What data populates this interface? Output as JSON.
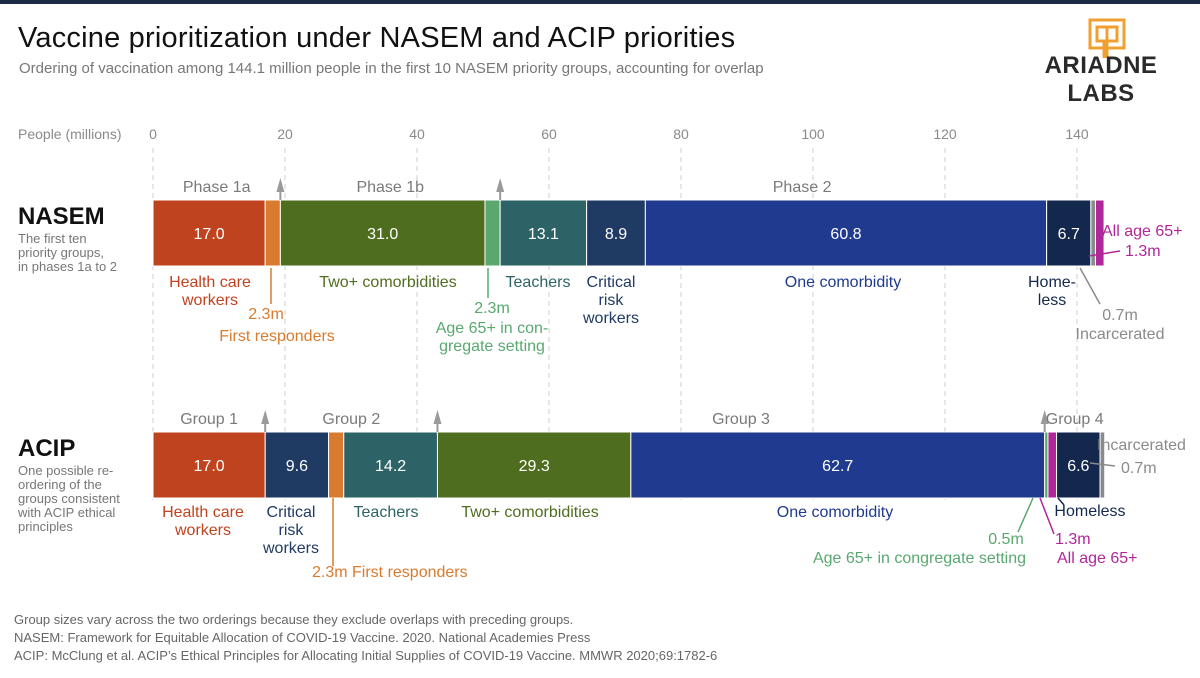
{
  "title": "Vaccine prioritization under NASEM and ACIP priorities",
  "subtitle": "Ordering of vaccination among 144.1 million people in the first 10 NASEM priority groups, accounting for overlap",
  "logo": {
    "text": "ARIADNE LABS",
    "icon": "ariadne-labs-labyrinth-icon",
    "color": "#f0a030"
  },
  "footnotes": [
    "Group sizes vary across the two orderings because they exclude overlaps with preceding groups.",
    "NASEM: Framework for Equitable Allocation of COVID-19 Vaccine. 2020. National Academies Press",
    "ACIP: McClung et al. ACIP’s Ethical Principles for Allocating Initial Supplies of COVID-19 Vaccine. MMWR 2020;69:1782-6"
  ],
  "chart_data": {
    "type": "bar",
    "orientation": "horizontal-stacked",
    "xlabel": "People (millions)",
    "xlim": [
      0,
      140
    ],
    "xticks": [
      0,
      20,
      40,
      60,
      80,
      100,
      120,
      140
    ],
    "grid": "dashed-vertical",
    "rows": [
      {
        "name": "NASEM",
        "description": "The first ten priority groups, in phases 1a to 2",
        "segments": [
          {
            "label": "Health care workers",
            "value": 17.0,
            "value_text": "17.0",
            "color": "#c0431f"
          },
          {
            "label": "First responders",
            "value": 2.3,
            "value_text": "2.3m",
            "color": "#d97b2e"
          },
          {
            "label": "Two+ comorbidities",
            "value": 31.0,
            "value_text": "31.0",
            "color": "#4f6d1f"
          },
          {
            "label": "Age 65+ in congregate setting",
            "value": 2.3,
            "value_text": "2.3m",
            "color": "#5aa870"
          },
          {
            "label": "Teachers",
            "value": 13.1,
            "value_text": "13.1",
            "color": "#2d6366"
          },
          {
            "label": "Critical risk workers",
            "value": 8.9,
            "value_text": "8.9",
            "color": "#1f3a63"
          },
          {
            "label": "One comorbidity",
            "value": 60.8,
            "value_text": "60.8",
            "color": "#1f3a8e"
          },
          {
            "label": "Homeless",
            "value": 6.7,
            "value_text": "6.7",
            "color": "#14284e"
          },
          {
            "label": "Incarcerated",
            "value": 0.7,
            "value_text": "0.7m",
            "color": "#8a8a8a"
          },
          {
            "label": "All age 65+",
            "value": 1.3,
            "value_text": "1.3m",
            "color": "#b0279a"
          }
        ],
        "phases": [
          {
            "label": "Phase 1a",
            "end": 19.3
          },
          {
            "label": "Phase 1b",
            "end": 52.6
          },
          {
            "label": "Phase 2",
            "end": null
          }
        ]
      },
      {
        "name": "ACIP",
        "description": "One possible re-ordering of the groups consistent with ACIP ethical principles",
        "segments": [
          {
            "label": "Health care workers",
            "value": 17.0,
            "value_text": "17.0",
            "color": "#c0431f"
          },
          {
            "label": "Critical risk workers",
            "value": 9.6,
            "value_text": "9.6",
            "color": "#1f3a63"
          },
          {
            "label": "First responders",
            "value": 2.3,
            "value_text": "2.3m",
            "color": "#d97b2e"
          },
          {
            "label": "Teachers",
            "value": 14.2,
            "value_text": "14.2",
            "color": "#2d6366"
          },
          {
            "label": "Two+ comorbidities",
            "value": 29.3,
            "value_text": "29.3",
            "color": "#4f6d1f"
          },
          {
            "label": "One comorbidity",
            "value": 62.7,
            "value_text": "62.7",
            "color": "#1f3a8e"
          },
          {
            "label": "Age 65+ in congregate setting",
            "value": 0.5,
            "value_text": "0.5m",
            "color": "#5aa870"
          },
          {
            "label": "All age 65+",
            "value": 1.3,
            "value_text": "1.3m",
            "color": "#b0279a"
          },
          {
            "label": "Homeless",
            "value": 6.6,
            "value_text": "6.6",
            "color": "#14284e"
          },
          {
            "label": "Incarcerated",
            "value": 0.7,
            "value_text": "0.7m",
            "color": "#8a8a8a"
          }
        ],
        "phases": [
          {
            "label": "Group 1",
            "end": 17.0
          },
          {
            "label": "Group 2",
            "end": 43.1
          },
          {
            "label": "Group 3",
            "end": 135.1
          },
          {
            "label": "Group 4",
            "end": null
          }
        ]
      }
    ]
  }
}
